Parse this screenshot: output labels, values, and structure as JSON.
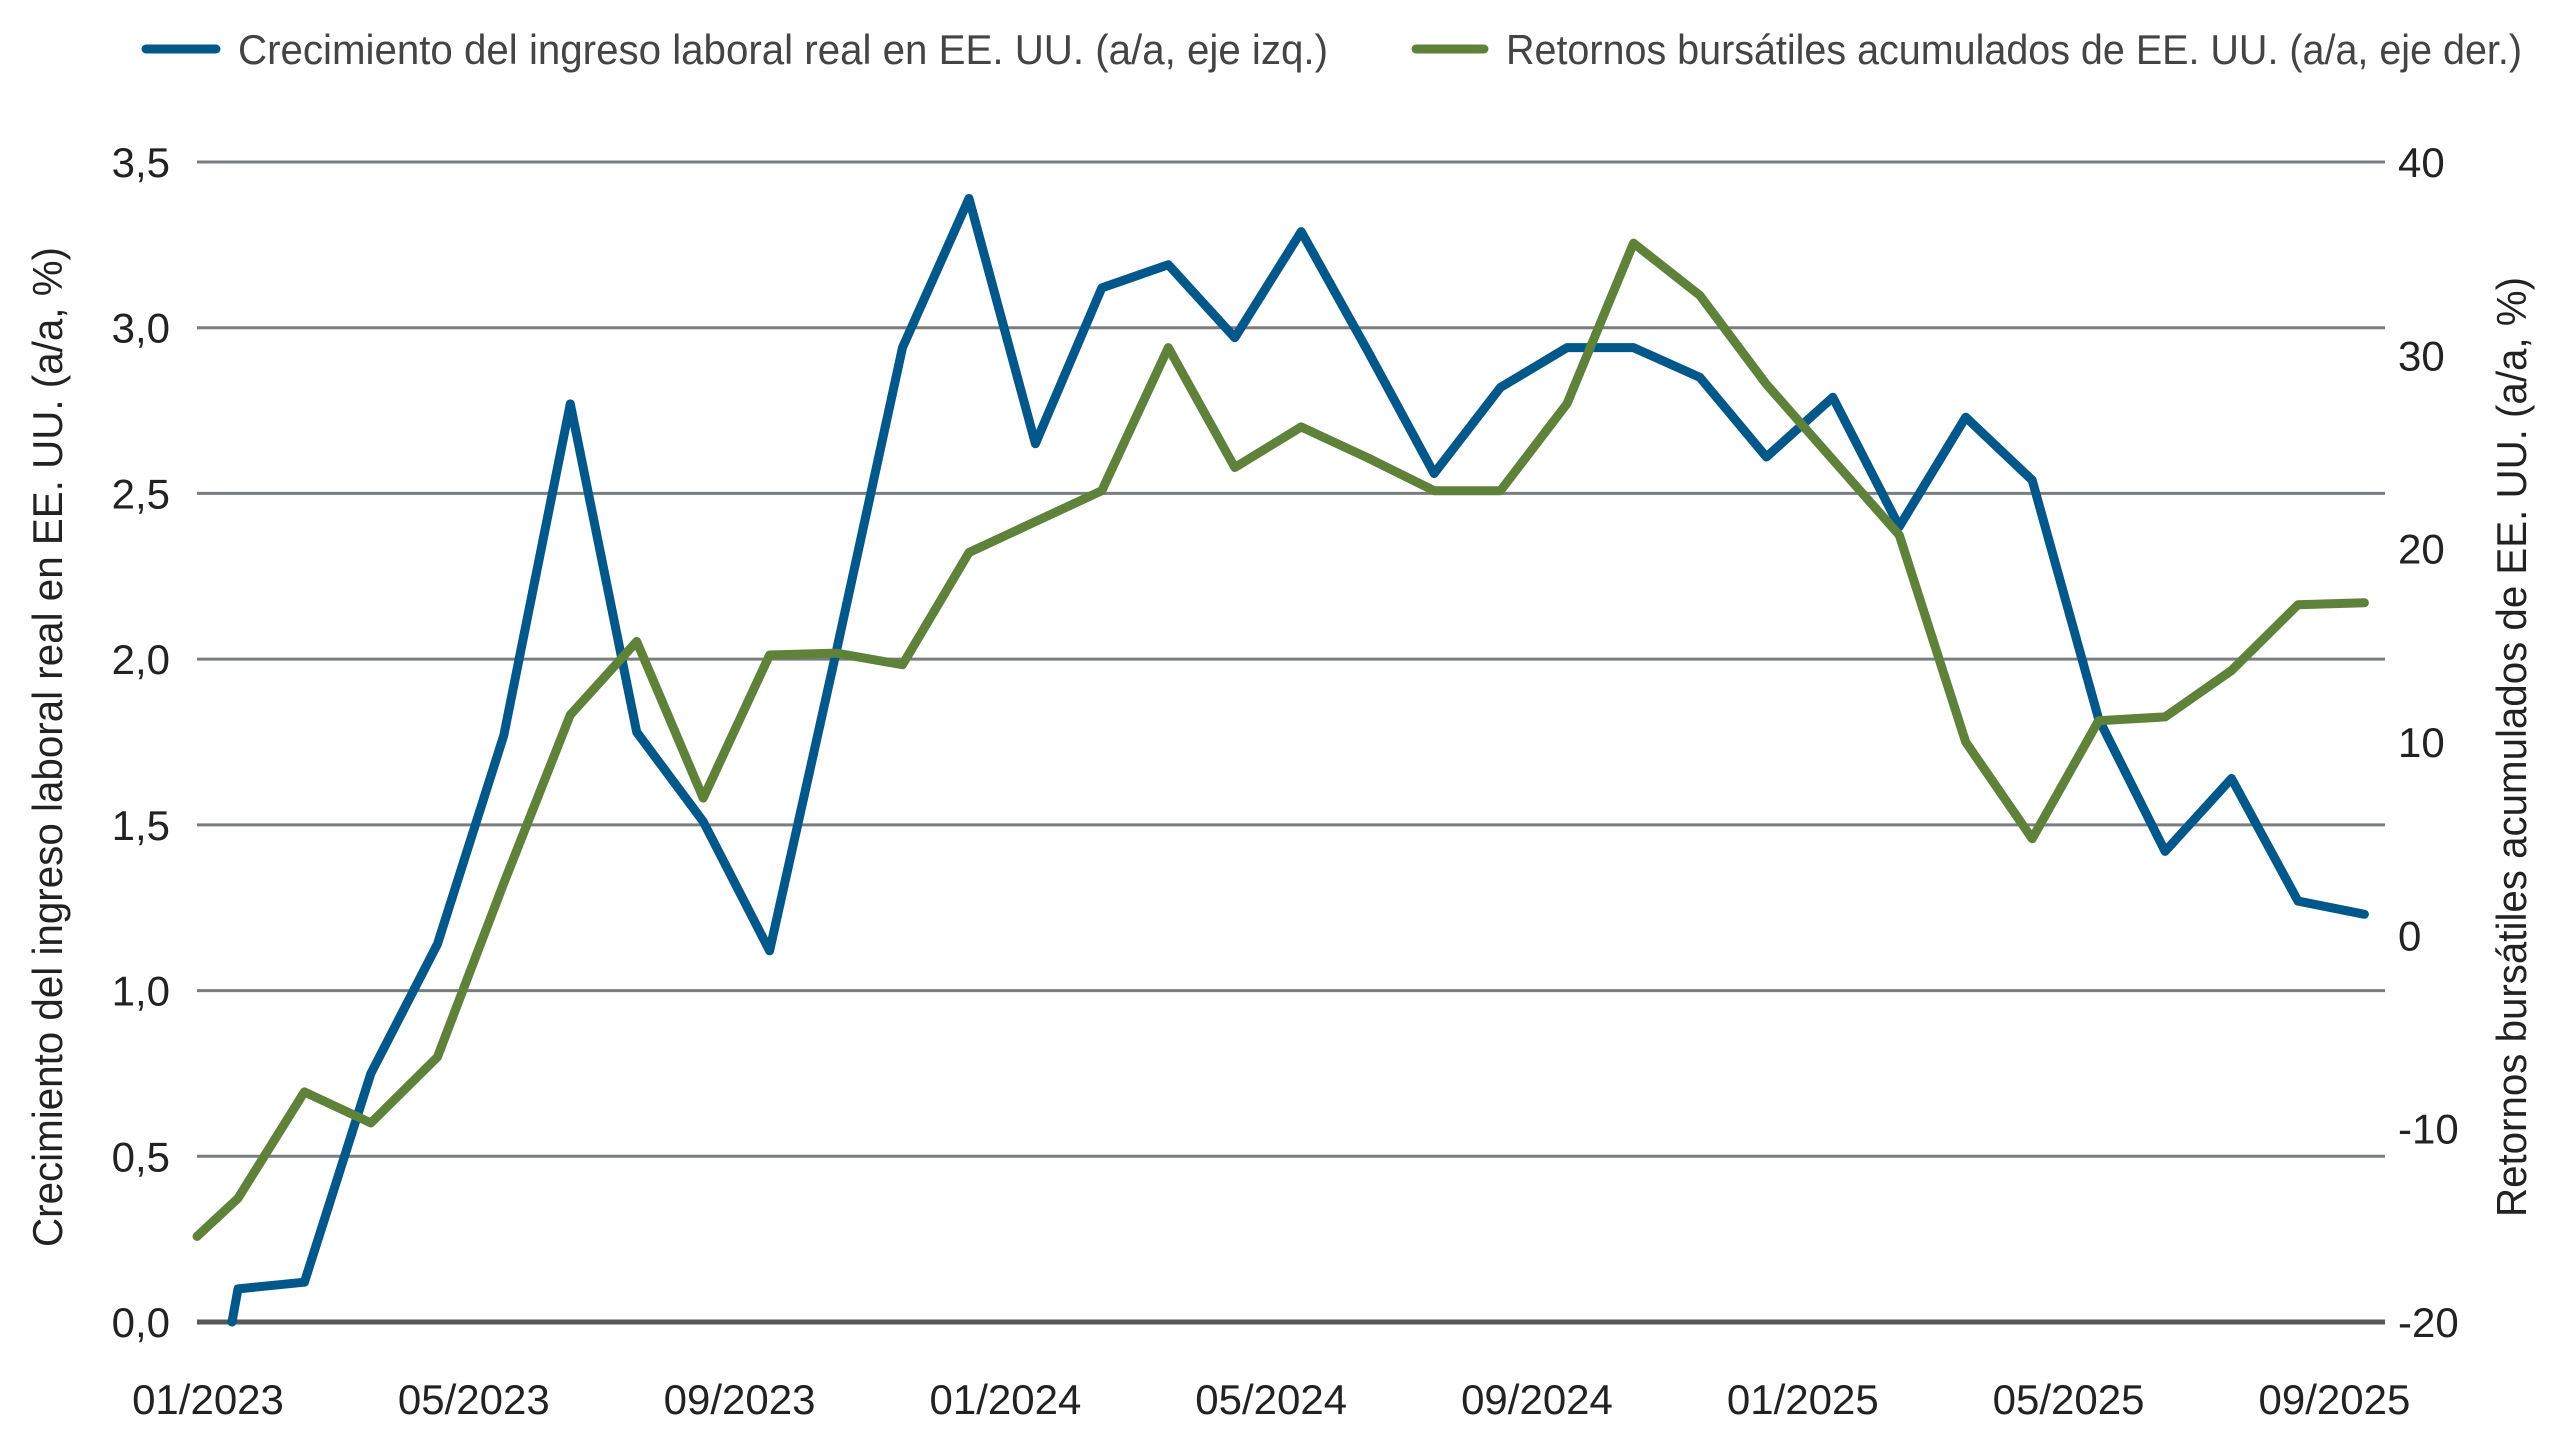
{
  "chart_data": {
    "type": "line",
    "title": "",
    "x": [
      "12/2022",
      "01/2023",
      "02/2023",
      "03/2023",
      "04/2023",
      "05/2023",
      "06/2023",
      "07/2023",
      "08/2023",
      "09/2023",
      "10/2023",
      "11/2023",
      "12/2023",
      "01/2024",
      "02/2024",
      "03/2024",
      "04/2024",
      "05/2024",
      "06/2024",
      "07/2024",
      "08/2024",
      "09/2024",
      "10/2024",
      "11/2024",
      "12/2024",
      "01/2025",
      "02/2025",
      "03/2025",
      "04/2025",
      "05/2025",
      "06/2025",
      "07/2025",
      "08/2025",
      "09/2025"
    ],
    "x_tick_labels": [
      "01/2023",
      "05/2023",
      "09/2023",
      "01/2024",
      "05/2024",
      "09/2024",
      "01/2025",
      "05/2025",
      "09/2025"
    ],
    "series": [
      {
        "name": "Crecimiento del ingreso laboral real en EE. UU. (a/a, eje izq.)",
        "axis": "left",
        "color": "#00578a",
        "values": [
          -1.0,
          0.1,
          0.12,
          0.75,
          1.14,
          1.77,
          2.77,
          1.78,
          1.51,
          1.12,
          2.02,
          2.94,
          3.39,
          2.65,
          3.12,
          3.19,
          2.97,
          3.29,
          2.93,
          2.56,
          2.82,
          2.94,
          2.94,
          2.85,
          2.61,
          2.79,
          2.4,
          2.73,
          2.54,
          1.82,
          1.42,
          1.64,
          1.27,
          1.23
        ]
      },
      {
        "name": "Retornos bursátiles acumulados de EE. UU. (a/a, eje der.)",
        "axis": "right",
        "color": "#5e823a",
        "values": [
          -16.8,
          -13.6,
          -8.1,
          -9.7,
          -6.3,
          2.7,
          11.4,
          15.2,
          7.1,
          14.5,
          14.6,
          14.0,
          19.8,
          21.4,
          23.0,
          30.4,
          24.2,
          26.3,
          24.7,
          23.0,
          23.0,
          27.5,
          35.8,
          33.1,
          28.5,
          24.6,
          20.7,
          10.0,
          5.0,
          11.1,
          11.3,
          13.7,
          17.1,
          17.2
        ]
      }
    ],
    "ylabel_left": "Crecimiento del ingreso laboral real en EE. UU. (a/a, %)",
    "ylabel_right": "Retornos bursátiles acumulados de EE. UU. (a/a, %)",
    "ylim_left": [
      0,
      3.5
    ],
    "ylim_right": [
      -20,
      40
    ],
    "left_ticks": [
      "0,0",
      "0,5",
      "1,0",
      "1,5",
      "2,0",
      "2,5",
      "3,0",
      "3,5"
    ],
    "right_ticks": [
      "-20",
      "-10",
      "0",
      "10",
      "20",
      "30",
      "40"
    ],
    "grid": true,
    "legend_position": "top"
  }
}
